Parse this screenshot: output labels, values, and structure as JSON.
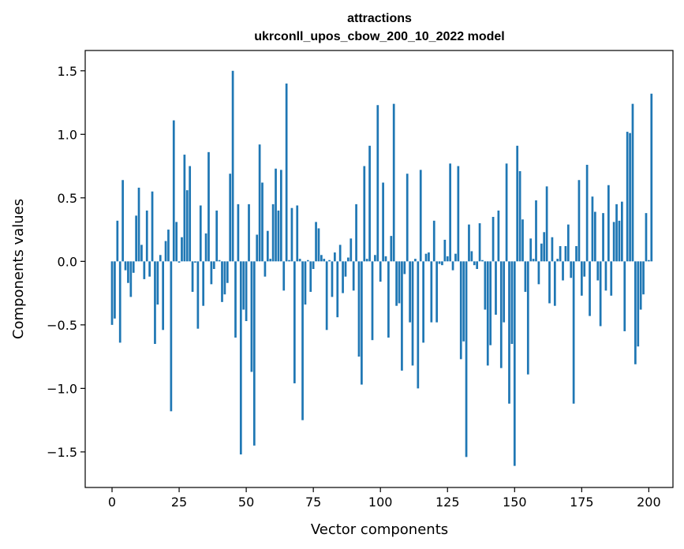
{
  "chart_data": {
    "type": "bar",
    "title_line1": "attractions",
    "title_line2": "ukrconll_upos_cbow_200_10_2022 model",
    "xlabel": "Vector components",
    "ylabel": "Components values",
    "xlim": [
      -10,
      209
    ],
    "ylim": [
      -1.78,
      1.66
    ],
    "xticks": [
      0,
      25,
      50,
      75,
      100,
      125,
      150,
      175,
      200
    ],
    "yticks": [
      -1.5,
      -1.0,
      -0.5,
      0.0,
      0.5,
      1.0,
      1.5
    ],
    "ytick_labels": [
      "−1.5",
      "−1.0",
      "−0.5",
      "0.0",
      "0.5",
      "1.0",
      "1.5"
    ],
    "bar_color": "#1f77b4",
    "grid": false,
    "values": [
      -0.5,
      -0.45,
      0.32,
      -0.64,
      0.64,
      -0.07,
      -0.17,
      -0.28,
      -0.09,
      0.36,
      0.58,
      0.13,
      -0.14,
      0.4,
      -0.12,
      0.55,
      -0.65,
      -0.34,
      0.05,
      -0.54,
      0.16,
      0.25,
      -1.18,
      1.11,
      0.31,
      -0.01,
      0.19,
      0.84,
      0.56,
      0.75,
      -0.24,
      -0.01,
      -0.53,
      0.44,
      -0.35,
      0.22,
      0.86,
      -0.18,
      -0.06,
      0.4,
      0.01,
      -0.32,
      -0.26,
      -0.17,
      0.69,
      1.5,
      -0.6,
      0.45,
      -1.52,
      -0.38,
      -0.47,
      0.45,
      -0.87,
      -1.45,
      0.21,
      0.92,
      0.62,
      -0.12,
      0.24,
      0.02,
      0.45,
      0.73,
      0.4,
      0.72,
      -0.23,
      1.4,
      0.01,
      0.42,
      -0.96,
      0.44,
      0.02,
      -1.25,
      -0.34,
      0.01,
      -0.24,
      -0.06,
      0.31,
      0.26,
      0.05,
      0.02,
      -0.54,
      0.01,
      -0.28,
      0.07,
      -0.44,
      0.13,
      -0.25,
      -0.12,
      0.03,
      0.18,
      -0.23,
      0.45,
      -0.75,
      -0.97,
      0.75,
      0.02,
      0.91,
      -0.62,
      0.05,
      1.23,
      -0.16,
      0.62,
      0.04,
      -0.6,
      0.2,
      1.24,
      -0.35,
      -0.33,
      -0.86,
      -0.1,
      0.69,
      -0.48,
      -0.82,
      0.02,
      -1.0,
      0.72,
      -0.64,
      0.06,
      0.07,
      -0.48,
      0.32,
      -0.48,
      -0.02,
      -0.03,
      0.17,
      0.04,
      0.77,
      -0.07,
      0.06,
      0.75,
      -0.77,
      -0.63,
      -1.54,
      0.29,
      0.08,
      -0.03,
      -0.06,
      0.3,
      0.01,
      -0.38,
      -0.82,
      -0.66,
      0.35,
      -0.42,
      0.4,
      -0.84,
      -0.48,
      0.77,
      -1.12,
      -0.65,
      -1.61,
      0.91,
      0.71,
      0.33,
      -0.24,
      -0.89,
      0.18,
      0.02,
      0.48,
      -0.18,
      0.14,
      0.23,
      0.59,
      -0.33,
      0.19,
      -0.35,
      0.02,
      0.12,
      -0.15,
      0.12,
      0.29,
      -0.13,
      -1.12,
      0.12,
      0.64,
      -0.27,
      -0.12,
      0.76,
      -0.43,
      0.51,
      0.39,
      -0.15,
      -0.51,
      0.38,
      -0.23,
      0.6,
      -0.27,
      0.31,
      0.45,
      0.32,
      0.47,
      -0.55,
      1.02,
      1.01,
      1.24,
      -0.81,
      -0.67,
      -0.38,
      -0.26,
      0.38,
      0.01,
      1.32
    ]
  }
}
